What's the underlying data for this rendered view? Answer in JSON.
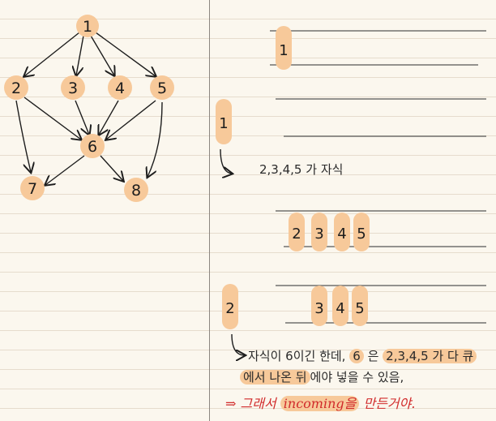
{
  "graph": {
    "nodes": [
      "1",
      "2",
      "3",
      "4",
      "5",
      "6",
      "7",
      "8"
    ],
    "edges": [
      [
        "1",
        "2"
      ],
      [
        "1",
        "3"
      ],
      [
        "1",
        "4"
      ],
      [
        "1",
        "5"
      ],
      [
        "2",
        "6"
      ],
      [
        "3",
        "6"
      ],
      [
        "4",
        "6"
      ],
      [
        "5",
        "6"
      ],
      [
        "2",
        "7"
      ],
      [
        "6",
        "7"
      ],
      [
        "6",
        "8"
      ],
      [
        "5",
        "8"
      ]
    ]
  },
  "steps": {
    "queue1": [
      "1"
    ],
    "step1_node": "1",
    "children_note": "2,3,4,5 가 자식",
    "queue2": [
      "2",
      "3",
      "4",
      "5"
    ],
    "step2_node": "2",
    "queue3": [
      "3",
      "4",
      "5"
    ],
    "note_prefix": "자식이 6이긴 한데,",
    "note_six": "6",
    "note_eun": "은",
    "note_list": "2,3,4,5 가 다 큐",
    "note_line2_hl": "에서 나온 뒤",
    "note_line2_rest": "에야 넣을 수 있음,",
    "conclusion_arrow": "⇒",
    "conclusion_so": "그래서",
    "conclusion_incoming": "incoming을",
    "conclusion_end": "만든거야."
  },
  "colors": {
    "highlight": "#f7c99a",
    "ink": "#1d1d1d",
    "red": "#d12b2b",
    "lines": "#e6dccd"
  }
}
